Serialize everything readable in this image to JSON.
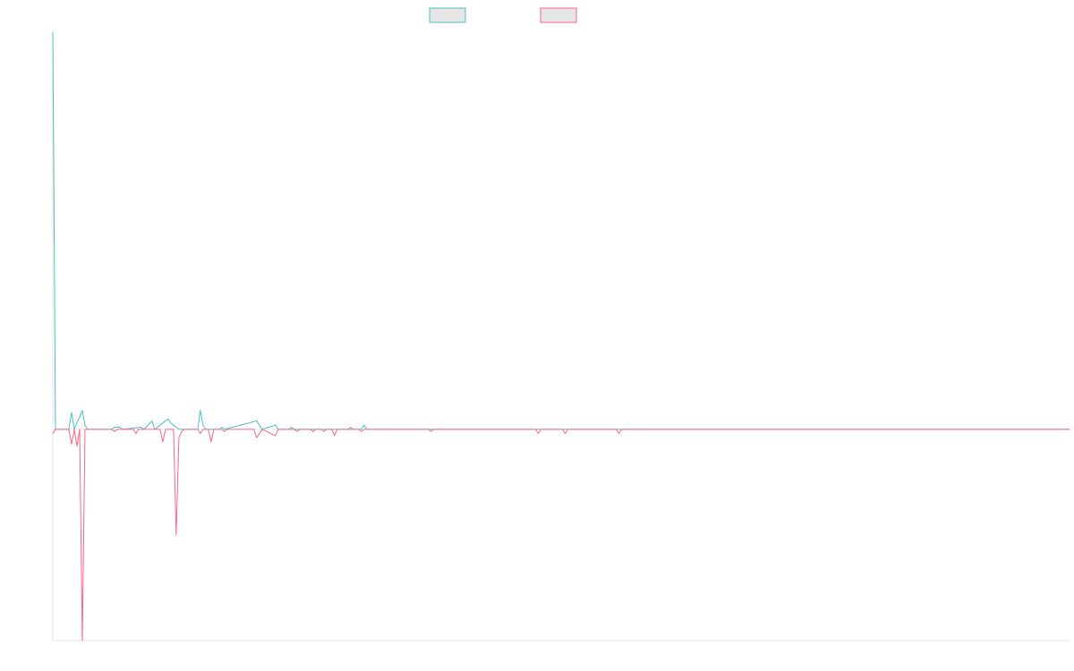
{
  "chart_data": {
    "type": "line",
    "title": "",
    "xlabel": "",
    "ylabel": "",
    "grid": false,
    "legend_position": "top-center",
    "x_count": 380,
    "xlim": [
      0,
      379
    ],
    "ylim": [
      -100,
      188
    ],
    "series": [
      {
        "name": "",
        "color": "#4bc0c0",
        "fill": "#e5e5e5",
        "points": [
          [
            0,
            188
          ],
          [
            1,
            0
          ],
          [
            2,
            0
          ],
          [
            6,
            0
          ],
          [
            7,
            8
          ],
          [
            8,
            0
          ],
          [
            11,
            9
          ],
          [
            12,
            2
          ],
          [
            13,
            0
          ],
          [
            22,
            0
          ],
          [
            23,
            1
          ],
          [
            25,
            1
          ],
          [
            26,
            0
          ],
          [
            33,
            1
          ],
          [
            34,
            0
          ],
          [
            37,
            4
          ],
          [
            38,
            0
          ],
          [
            43,
            5
          ],
          [
            44,
            3
          ],
          [
            45,
            2
          ],
          [
            46,
            1
          ],
          [
            47,
            0
          ],
          [
            54,
            0
          ],
          [
            55,
            9
          ],
          [
            56,
            2
          ],
          [
            57,
            0
          ],
          [
            62,
            0
          ],
          [
            63,
            1
          ],
          [
            64,
            0
          ],
          [
            76,
            4
          ],
          [
            77,
            2
          ],
          [
            78,
            0
          ],
          [
            83,
            2
          ],
          [
            84,
            0
          ],
          [
            88,
            0
          ],
          [
            89,
            1
          ],
          [
            90,
            0
          ],
          [
            110,
            0
          ],
          [
            111,
            1
          ],
          [
            112,
            0
          ],
          [
            115,
            0
          ],
          [
            116,
            2
          ],
          [
            117,
            0
          ],
          [
            180,
            0
          ],
          [
            379,
            0
          ]
        ]
      },
      {
        "name": "",
        "color": "#ff6384",
        "fill": "#e5e5e5",
        "points": [
          [
            0,
            -2
          ],
          [
            1,
            0
          ],
          [
            6,
            0
          ],
          [
            7,
            -7
          ],
          [
            8,
            0
          ],
          [
            9,
            -8
          ],
          [
            10,
            0
          ],
          [
            11,
            -100
          ],
          [
            12,
            0
          ],
          [
            22,
            0
          ],
          [
            23,
            -1
          ],
          [
            24,
            0
          ],
          [
            30,
            0
          ],
          [
            31,
            -2
          ],
          [
            32,
            0
          ],
          [
            40,
            0
          ],
          [
            41,
            -6
          ],
          [
            42,
            0
          ],
          [
            45,
            0
          ],
          [
            46,
            -50
          ],
          [
            47,
            -4
          ],
          [
            48,
            -1
          ],
          [
            49,
            0
          ],
          [
            54,
            0
          ],
          [
            55,
            -2
          ],
          [
            56,
            0
          ],
          [
            58,
            0
          ],
          [
            59,
            -6
          ],
          [
            60,
            0
          ],
          [
            63,
            0
          ],
          [
            64,
            -1
          ],
          [
            65,
            0
          ],
          [
            75,
            0
          ],
          [
            76,
            -4
          ],
          [
            77,
            -2
          ],
          [
            78,
            0
          ],
          [
            83,
            -3
          ],
          [
            84,
            0
          ],
          [
            90,
            0
          ],
          [
            91,
            -1
          ],
          [
            92,
            0
          ],
          [
            96,
            0
          ],
          [
            97,
            -1
          ],
          [
            98,
            0
          ],
          [
            100,
            0
          ],
          [
            101,
            -1
          ],
          [
            102,
            0
          ],
          [
            104,
            0
          ],
          [
            105,
            -3
          ],
          [
            106,
            0
          ],
          [
            114,
            0
          ],
          [
            115,
            -1
          ],
          [
            116,
            0
          ],
          [
            140,
            0
          ],
          [
            141,
            -1
          ],
          [
            142,
            0
          ],
          [
            180,
            0
          ],
          [
            181,
            -2
          ],
          [
            182,
            0
          ],
          [
            190,
            0
          ],
          [
            191,
            -2
          ],
          [
            192,
            0
          ],
          [
            210,
            0
          ],
          [
            211,
            -2
          ],
          [
            212,
            0
          ],
          [
            230,
            0
          ],
          [
            379,
            0
          ]
        ]
      }
    ]
  }
}
